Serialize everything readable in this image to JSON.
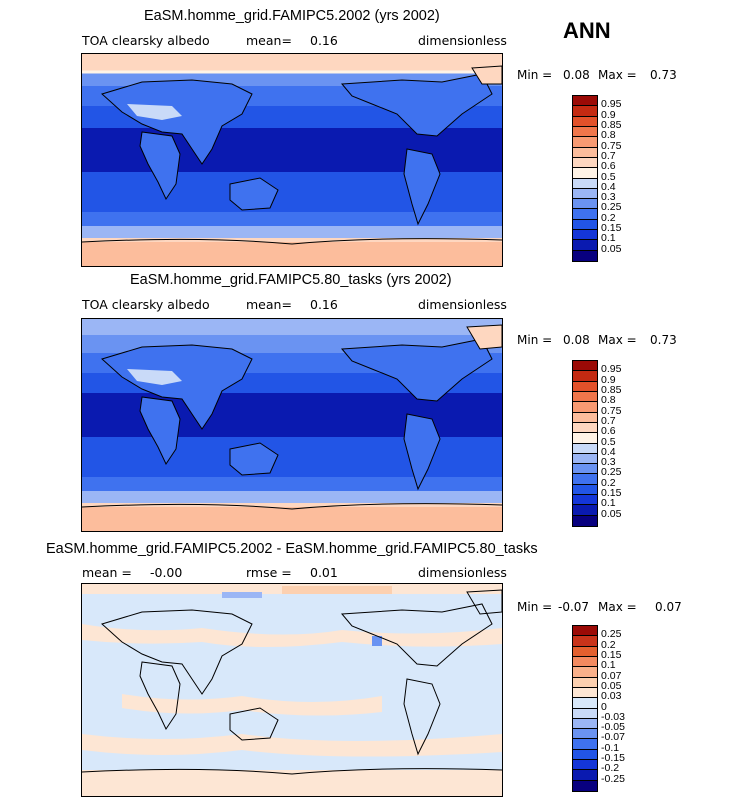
{
  "season_label": "ANN",
  "colors": {
    "abs_scale": [
      "#08007f",
      "#0a1ab0",
      "#1436d8",
      "#2255e6",
      "#3f72ef",
      "#6a93f2",
      "#9bb6f5",
      "#c9daf8",
      "#fff3e6",
      "#fed7c0",
      "#fcbd9c",
      "#f89a72",
      "#f0764b",
      "#e2512a",
      "#c42a12",
      "#9b0a06"
    ],
    "diff_scale": [
      "#08007f",
      "#0a1ab0",
      "#1436d8",
      "#2255e6",
      "#3f72ef",
      "#6a93f2",
      "#9bb6f5",
      "#c9daf8",
      "#d8e8fa",
      "#fde6d4",
      "#fcd0b0",
      "#f9b08a",
      "#f38a60",
      "#e3602f",
      "#c8331a",
      "#9b0a06"
    ]
  },
  "panels": [
    {
      "title": "EaSM.homme_grid.FAMIPC5.2002 (yrs 2002)",
      "variable": "TOA clearsky albedo",
      "mean_label": "mean=",
      "mean_value": "0.16",
      "units": "dimensionless",
      "min_label": "Min =",
      "min_value": "0.08",
      "max_label": "Max =",
      "max_value": "0.73",
      "colorbar_ticks": [
        "0.95",
        "0.9",
        "0.85",
        "0.8",
        "0.75",
        "0.7",
        "0.6",
        "0.5",
        "0.4",
        "0.3",
        "0.25",
        "0.2",
        "0.15",
        "0.1",
        "0.05"
      ]
    },
    {
      "title": "EaSM.homme_grid.FAMIPC5.80_tasks (yrs 2002)",
      "variable": "TOA clearsky albedo",
      "mean_label": "mean=",
      "mean_value": "0.16",
      "units": "dimensionless",
      "min_label": "Min =",
      "min_value": "0.08",
      "max_label": "Max =",
      "max_value": "0.73",
      "colorbar_ticks": [
        "0.95",
        "0.9",
        "0.85",
        "0.8",
        "0.75",
        "0.7",
        "0.6",
        "0.5",
        "0.4",
        "0.3",
        "0.25",
        "0.2",
        "0.15",
        "0.1",
        "0.05"
      ]
    },
    {
      "title": "EaSM.homme_grid.FAMIPC5.2002 - EaSM.homme_grid.FAMIPC5.80_tasks",
      "mean_label": "mean =",
      "mean_value": "-0.00",
      "rmse_label": "rmse =",
      "rmse_value": "0.01",
      "units": "dimensionless",
      "min_label": "Min =",
      "min_value": "-0.07",
      "max_label": "Max =",
      "max_value": "0.07",
      "colorbar_ticks": [
        "0.25",
        "0.2",
        "0.15",
        "0.1",
        "0.07",
        "0.05",
        "0.03",
        "0",
        "-0.03",
        "-0.05",
        "-0.07",
        "-0.1",
        "-0.15",
        "-0.2",
        "-0.25"
      ]
    }
  ]
}
